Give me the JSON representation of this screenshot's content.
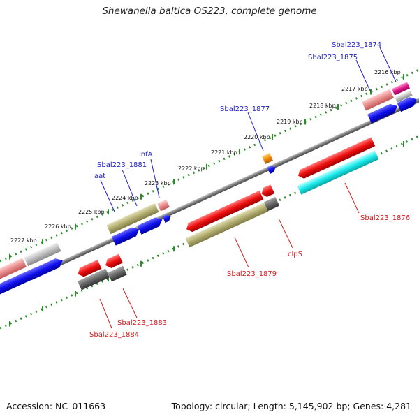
{
  "title": "Shewanella baltica OS223, complete genome",
  "footer": {
    "accession": "Accession: NC_011663",
    "stats": "Topology: circular; Length: 5,145,902 bp; Genes: 4,281"
  },
  "scale_labels": [
    "2216 kbp",
    "2217 kbp",
    "2218 kbp",
    "2219 kbp",
    "2220 kbp",
    "2221 kbp",
    "2222 kbp",
    "2223 kbp",
    "2224 kbp",
    "2225 kbp",
    "2226 kbp",
    "2227 kbp"
  ],
  "gene_labels_top": [
    "Sbal223_1874",
    "Sbal223_1875",
    "Sbal223_1877",
    "infA",
    "Sbal223_1881",
    "aat"
  ],
  "gene_labels_bottom": [
    "Sbal223_1876",
    "clpS",
    "Sbal223_1879",
    "Sbal223_1883",
    "Sbal223_1884"
  ],
  "colors": {
    "plus_label": "#1d1dc8",
    "minus_label": "#d81b1b",
    "backbone": "#7a7a7a",
    "ticks": "#2e8b2e",
    "cds": "#1f1fe6",
    "red_feature": "#ee1111",
    "olive_feature": "#b5b17a",
    "cyan_feature": "#19e6e6",
    "gray_feature": "#666666",
    "pink_feature": "#e58a8a",
    "orange_feature": "#f08a00",
    "magenta_feature": "#e0188a"
  }
}
